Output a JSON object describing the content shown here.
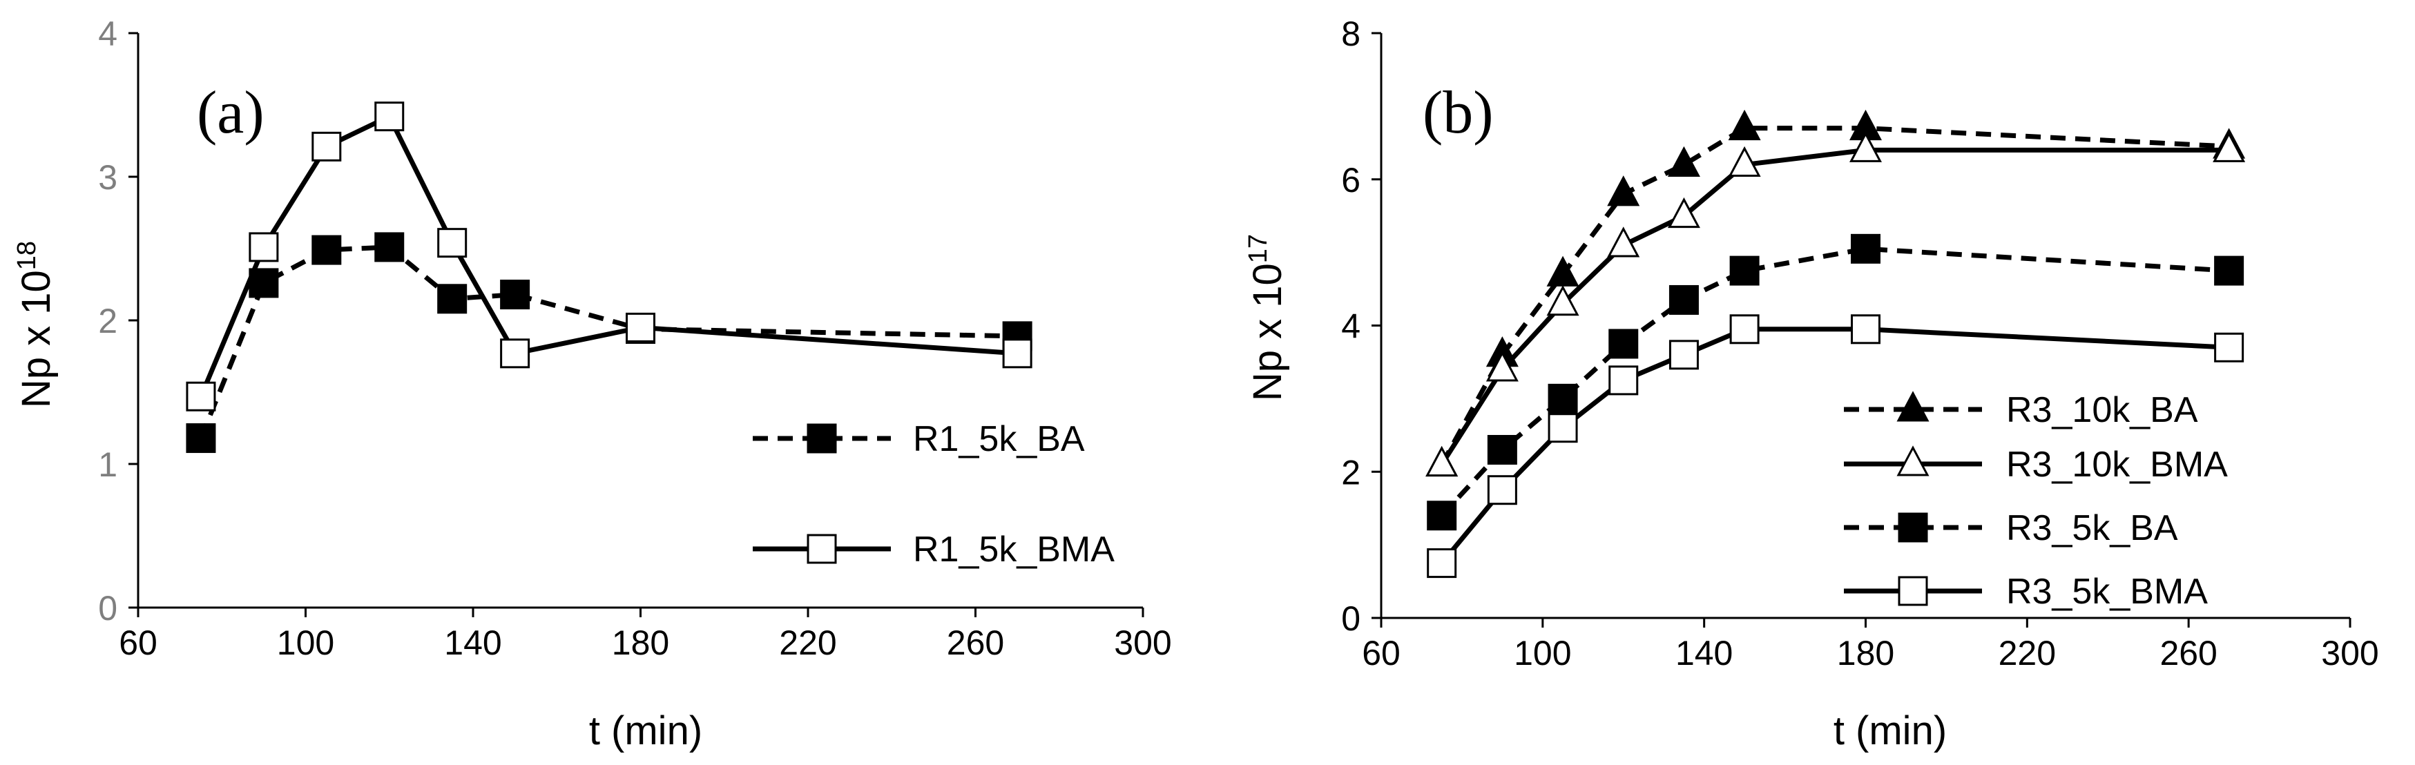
{
  "chart_data": [
    {
      "type": "line",
      "panel_label": "(a)",
      "xlabel": "t (min)",
      "ylabel_prefix": "Np x 10",
      "ylabel_exponent": "18",
      "xlim": [
        60,
        300
      ],
      "ylim": [
        0,
        4
      ],
      "xticks": [
        60,
        100,
        140,
        180,
        220,
        260,
        300
      ],
      "yticks": [
        0,
        1,
        2,
        3,
        4
      ],
      "legend_position": "right",
      "series": [
        {
          "name": "R1_5k_BA",
          "line_style": "dashed",
          "marker": "square-filled",
          "x": [
            75,
            90,
            105,
            120,
            135,
            150,
            180,
            270
          ],
          "y": [
            1.18,
            2.26,
            2.49,
            2.51,
            2.15,
            2.18,
            1.94,
            1.89
          ]
        },
        {
          "name": "R1_5k_BMA",
          "line_style": "solid",
          "marker": "square-open",
          "x": [
            75,
            90,
            105,
            120,
            135,
            150,
            180,
            270
          ],
          "y": [
            1.47,
            2.51,
            3.21,
            3.42,
            2.54,
            1.77,
            1.95,
            1.77
          ]
        }
      ]
    },
    {
      "type": "line",
      "panel_label": "(b)",
      "xlabel": "t (min)",
      "ylabel_prefix": "Np x 10",
      "ylabel_exponent": "17",
      "xlim": [
        60,
        300
      ],
      "ylim": [
        0,
        8
      ],
      "xticks": [
        60,
        100,
        140,
        180,
        220,
        260,
        300
      ],
      "yticks": [
        0,
        2,
        4,
        6,
        8
      ],
      "legend_position": "right",
      "series": [
        {
          "name": "R3_10k_BA",
          "line_style": "dashed",
          "marker": "triangle-filled",
          "x": [
            75,
            90,
            105,
            120,
            135,
            150,
            180,
            270
          ],
          "y": [
            2.1,
            3.6,
            4.7,
            5.8,
            6.2,
            6.7,
            6.7,
            6.45
          ]
        },
        {
          "name": "R3_10k_BMA",
          "line_style": "solid",
          "marker": "triangle-open",
          "x": [
            75,
            90,
            105,
            120,
            135,
            150,
            180,
            270
          ],
          "y": [
            2.1,
            3.4,
            4.3,
            5.1,
            5.5,
            6.2,
            6.4,
            6.4
          ]
        },
        {
          "name": "R3_5k_BA",
          "line_style": "dashed",
          "marker": "square-filled",
          "x": [
            75,
            90,
            105,
            120,
            135,
            150,
            180,
            270
          ],
          "y": [
            1.4,
            2.3,
            3.0,
            3.75,
            4.35,
            4.75,
            5.05,
            4.75
          ]
        },
        {
          "name": "R3_5k_BMA",
          "line_style": "solid",
          "marker": "square-open",
          "x": [
            75,
            90,
            105,
            120,
            135,
            150,
            180,
            270
          ],
          "y": [
            0.75,
            1.75,
            2.6,
            3.25,
            3.6,
            3.95,
            3.95,
            3.7
          ]
        }
      ]
    }
  ]
}
